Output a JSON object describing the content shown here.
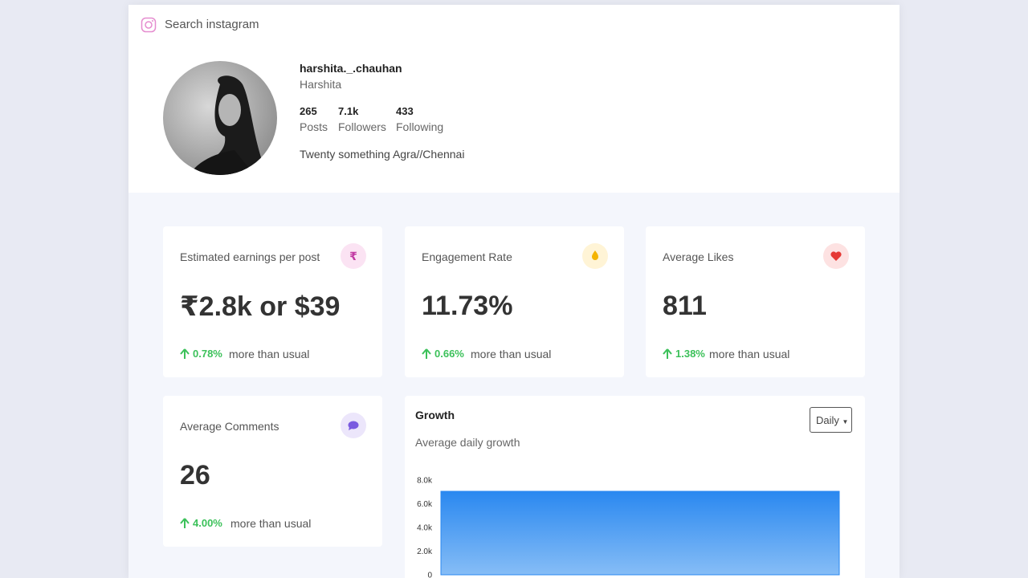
{
  "search": {
    "placeholder": "Search instagram"
  },
  "profile": {
    "username": "harshita._.chauhan",
    "name": "Harshita",
    "stats": [
      {
        "value": "265",
        "label": "Posts"
      },
      {
        "value": "7.1k",
        "label": "Followers"
      },
      {
        "value": "433",
        "label": "Following"
      }
    ],
    "bio": "Twenty something Agra//Chennai"
  },
  "cards": [
    {
      "title": "Estimated earnings per post",
      "value": "₹2.8k or $39",
      "change": "0.78%",
      "suffix": "more than usual"
    },
    {
      "title": "Engagement Rate",
      "value": "11.73%",
      "change": "0.66%",
      "suffix": "more than usual"
    },
    {
      "title": "Average Likes",
      "value": "811",
      "change": "1.38%",
      "suffix": "more than usual"
    },
    {
      "title": "Average Comments",
      "value": "26",
      "change": "4.00%",
      "suffix": "more than usual"
    }
  ],
  "growth": {
    "title": "Growth",
    "subtitle": "Average daily growth",
    "dropdown": "Daily",
    "chart_data": {
      "type": "area",
      "categories": [
        null,
        null
      ],
      "values": [
        7050,
        7050
      ],
      "color": "#2a88f0",
      "ylim": [
        0,
        8000
      ],
      "yticks": [
        0,
        {
          "value": 2000,
          "label": "2.0k"
        },
        {
          "value": 4000,
          "label": "4.0k"
        },
        {
          "value": 6000,
          "label": "6.0k"
        },
        {
          "value": 8000,
          "label": "8.0k"
        }
      ]
    }
  }
}
